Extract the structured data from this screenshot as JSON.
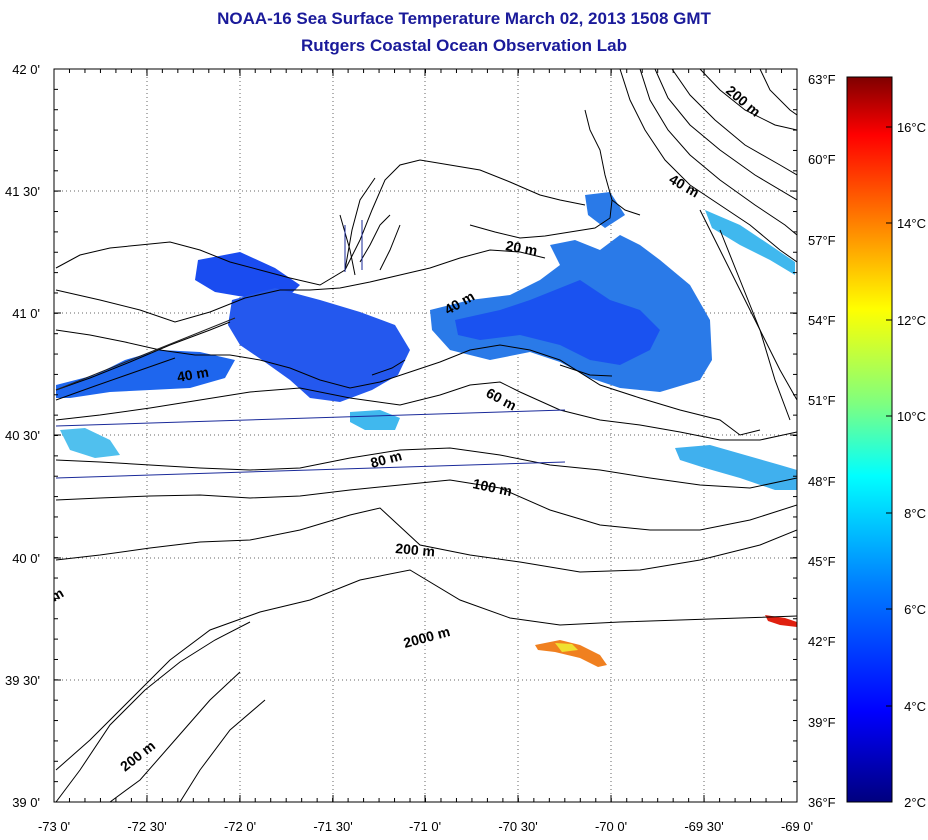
{
  "header": {
    "title": "NOAA-16 Sea Surface Temperature March 02, 2013 1508 GMT",
    "subtitle": "Rutgers Coastal Ocean Observation Lab"
  },
  "axes": {
    "lon_ticks": [
      "-73 0'",
      "-72 30'",
      "-72 0'",
      "-71 30'",
      "-71 0'",
      "-70 30'",
      "-70 0'",
      "-69 30'",
      "-69 0'"
    ],
    "lat_ticks": [
      "42 0'",
      "41 30'",
      "41 0'",
      "40 30'",
      "40 0'",
      "39 30'",
      "39 0'"
    ],
    "fahrenheit_ticks": [
      "63°F",
      "60°F",
      "57°F",
      "54°F",
      "51°F",
      "48°F",
      "45°F",
      "42°F",
      "39°F",
      "36°F"
    ],
    "celsius_ticks": [
      "16°C",
      "14°C",
      "12°C",
      "10°C",
      "8°C",
      "6°C",
      "4°C",
      "2°C"
    ]
  },
  "contour_labels": [
    "200 m",
    "40 m",
    "20 m",
    "40 m",
    "40 m",
    "60 m",
    "80 m",
    "100 m",
    "200 m",
    "2000 m",
    "200 m",
    "m"
  ],
  "colors": {
    "title": "#1a1a9a",
    "sst_cold": "#1a4cf0",
    "sst_mid": "#2a8ce8",
    "sst_cyan": "#40d0f0",
    "sst_warm": "#f07820",
    "sst_yellow": "#f0e030",
    "sst_red": "#e02010",
    "contour": "#000000",
    "track": "#1a2a9a"
  },
  "colorbar": {
    "stops": [
      "#00007f",
      "#0000ff",
      "#007fff",
      "#00ffff",
      "#7fff7f",
      "#ffff00",
      "#ff7f00",
      "#ff0000",
      "#7f0000"
    ]
  }
}
